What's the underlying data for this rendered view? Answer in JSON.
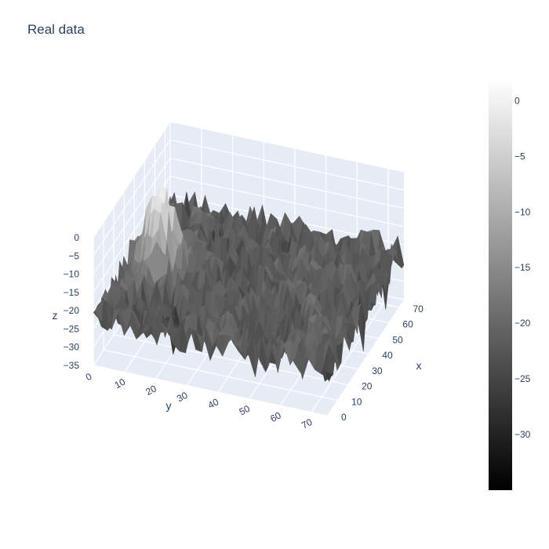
{
  "chart_data": {
    "type": "surface",
    "title": "Real data",
    "colorscale": "greys",
    "colorscale_colors": [
      "#000000",
      "#ffffff"
    ],
    "axes": {
      "x": {
        "label": "x",
        "range": [
          0,
          75
        ],
        "ticks": [
          "0",
          "10",
          "20",
          "30",
          "40",
          "50",
          "60",
          "70"
        ]
      },
      "y": {
        "label": "y",
        "range": [
          0,
          75
        ],
        "ticks": [
          "0",
          "10",
          "20",
          "30",
          "40",
          "50",
          "60",
          "70"
        ]
      },
      "z": {
        "label": "z",
        "range": [
          -35,
          0
        ],
        "ticks": [
          "0",
          "−5",
          "−10",
          "−15",
          "−20",
          "−25",
          "−30",
          "−35"
        ]
      }
    },
    "colorbar": {
      "range": [
        -35,
        2
      ],
      "ticks": [
        "0",
        "−5",
        "−10",
        "−15",
        "−20",
        "−25",
        "−30"
      ]
    },
    "surface_description": {
      "baseline_z": -22,
      "noise_amplitude": 6,
      "peak_z": 0,
      "peak_location": {
        "x": 10,
        "y": 35
      }
    }
  }
}
